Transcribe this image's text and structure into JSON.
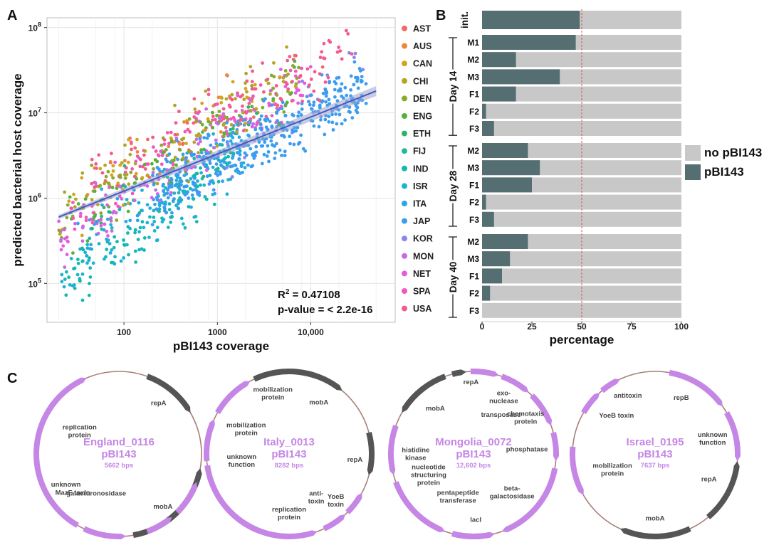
{
  "panel_labels": {
    "a": "A",
    "b": "B",
    "c": "C"
  },
  "colors": {
    "plasmid": "#546e72",
    "no_plasmid": "#c8c8c8",
    "ref_line": "#e05050",
    "regression": "#4557c9",
    "circle": "#a88078",
    "gene_purple": "#c586e6",
    "gene_gray": "#555555"
  },
  "chart_data": [
    {
      "type": "scatter",
      "panel": "A",
      "xlabel": "pBI143 coverage",
      "ylabel": "predicted bacterial host coverage",
      "xscale": "log10",
      "yscale": "log10",
      "xlim": [
        15,
        80000
      ],
      "ylim": [
        35000,
        130000000
      ],
      "xticks": [
        {
          "v": 100,
          "label": "100"
        },
        {
          "v": 1000,
          "label": "1000"
        },
        {
          "v": 10000,
          "label": "10,000"
        }
      ],
      "yticks": [
        {
          "v": 100000,
          "base": "10",
          "exp": "5"
        },
        {
          "v": 1000000,
          "base": "10",
          "exp": "6"
        },
        {
          "v": 10000000,
          "base": "10",
          "exp": "7"
        },
        {
          "v": 100000000,
          "base": "10",
          "exp": "8"
        }
      ],
      "regression": {
        "x": [
          20,
          50000
        ],
        "y": [
          600000,
          18000000
        ]
      },
      "stats": {
        "r2_prefix": "R",
        "r2_exp": "2",
        "r2_value": " = 0.47108",
        "pvalue": "p-value = < 2.2e-16"
      },
      "series": [
        {
          "name": "AST",
          "color": "#f06a6a",
          "n": 18,
          "logx": [
            1.5,
            4.2
          ],
          "logy": [
            6.0,
            7.6
          ]
        },
        {
          "name": "AUS",
          "color": "#e8883a",
          "n": 20,
          "logx": [
            1.4,
            3.8
          ],
          "logy": [
            5.9,
            7.5
          ]
        },
        {
          "name": "CAN",
          "color": "#d4a41c",
          "n": 40,
          "logx": [
            1.3,
            3.9
          ],
          "logy": [
            5.8,
            7.6
          ]
        },
        {
          "name": "CHI",
          "color": "#b2a623",
          "n": 70,
          "logx": [
            1.3,
            3.8
          ],
          "logy": [
            5.8,
            7.5
          ]
        },
        {
          "name": "DEN",
          "color": "#8aab2a",
          "n": 70,
          "logx": [
            1.3,
            3.9
          ],
          "logy": [
            5.8,
            7.4
          ]
        },
        {
          "name": "ENG",
          "color": "#56b03a",
          "n": 60,
          "logx": [
            1.4,
            3.9
          ],
          "logy": [
            5.7,
            7.3
          ]
        },
        {
          "name": "ETH",
          "color": "#2bb56a",
          "n": 15,
          "logx": [
            1.5,
            3.5
          ],
          "logy": [
            5.6,
            7.0
          ]
        },
        {
          "name": "FIJ",
          "color": "#1dbb98",
          "n": 15,
          "logx": [
            1.4,
            3.4
          ],
          "logy": [
            5.5,
            6.8
          ]
        },
        {
          "name": "IND",
          "color": "#13b8b0",
          "n": 90,
          "logx": [
            1.3,
            3.2
          ],
          "logy": [
            5.0,
            6.5
          ]
        },
        {
          "name": "ISR",
          "color": "#1ab3d2",
          "n": 110,
          "logx": [
            1.3,
            3.3
          ],
          "logy": [
            5.0,
            6.6
          ]
        },
        {
          "name": "ITA",
          "color": "#29a7e8",
          "n": 70,
          "logx": [
            1.5,
            3.8
          ],
          "logy": [
            5.6,
            6.9
          ]
        },
        {
          "name": "JAP",
          "color": "#3b9cf0",
          "n": 380,
          "logx": [
            2.3,
            4.6
          ],
          "logy": [
            6.0,
            7.3
          ]
        },
        {
          "name": "KOR",
          "color": "#8b86ea",
          "n": 20,
          "logx": [
            3.0,
            4.6
          ],
          "logy": [
            6.5,
            7.6
          ]
        },
        {
          "name": "MON",
          "color": "#c46ae8",
          "n": 60,
          "logx": [
            1.3,
            3.8
          ],
          "logy": [
            5.5,
            7.3
          ]
        },
        {
          "name": "NET",
          "color": "#e55ce0",
          "n": 80,
          "logx": [
            1.3,
            4.0
          ],
          "logy": [
            5.5,
            7.4
          ]
        },
        {
          "name": "SPA",
          "color": "#f257bb",
          "n": 70,
          "logx": [
            1.3,
            4.0
          ],
          "logy": [
            5.6,
            7.5
          ]
        },
        {
          "name": "USA",
          "color": "#f35a8e",
          "n": 120,
          "logx": [
            1.6,
            4.5
          ],
          "logy": [
            6.2,
            7.8
          ]
        }
      ]
    },
    {
      "type": "bar",
      "panel": "B",
      "orientation": "horizontal",
      "stacked": true,
      "xlabel": "percentage",
      "xlim": [
        0,
        100
      ],
      "xticks": [
        0,
        25,
        50,
        75,
        100
      ],
      "reference_line": 50,
      "legend": [
        {
          "name": "no pBI143",
          "key": "no_plasmid"
        },
        {
          "name": "pBI143",
          "key": "plasmid"
        }
      ],
      "groups": [
        {
          "day": "init.",
          "rows": [
            {
              "label": "",
              "value": 49
            }
          ]
        },
        {
          "day": "Day 14",
          "rows": [
            {
              "label": "M1",
              "value": 47
            },
            {
              "label": "M2",
              "value": 17
            },
            {
              "label": "M3",
              "value": 39
            },
            {
              "label": "F1",
              "value": 17
            },
            {
              "label": "F2",
              "value": 2
            },
            {
              "label": "F3",
              "value": 6
            }
          ]
        },
        {
          "day": "Day 28",
          "rows": [
            {
              "label": "M2",
              "value": 23
            },
            {
              "label": "M3",
              "value": 29
            },
            {
              "label": "F1",
              "value": 25
            },
            {
              "label": "F2",
              "value": 2
            },
            {
              "label": "F3",
              "value": 6
            }
          ]
        },
        {
          "day": "Day 40",
          "rows": [
            {
              "label": "M2",
              "value": 23
            },
            {
              "label": "M3",
              "value": 14
            },
            {
              "label": "F1",
              "value": 10
            },
            {
              "label": "F2",
              "value": 4
            },
            {
              "label": "F3",
              "value": 0
            }
          ]
        }
      ]
    }
  ],
  "plasmids": [
    {
      "name": "England_0116",
      "plasmid": "pBI143",
      "size": "5662 bps",
      "genes": [
        {
          "label": [
            "replication",
            "protein"
          ],
          "a1": 210,
          "a2": 337,
          "color": "purple",
          "dir": "cw",
          "ldeg": 300,
          "lr": 0.55
        },
        {
          "label": [
            "repA"
          ],
          "a1": 20,
          "a2": 60,
          "color": "gray",
          "dir": "cw",
          "ldeg": 38,
          "lr": 0.78
        },
        {
          "label": [
            "mobA"
          ],
          "a1": 100,
          "a2": 170,
          "color": "gray",
          "dir": "ccw",
          "ldeg": 140,
          "lr": 0.83
        },
        {
          "label": [
            "galacturonosidase"
          ],
          "a1": 175,
          "a2": 205,
          "color": "purple",
          "dir": "ccw",
          "ldeg": 210,
          "lr": 0.55
        },
        {
          "label": [
            "MazF toxin"
          ],
          "a1": 140,
          "a2": 160,
          "color": "purple",
          "dir": "ccw",
          "ldeg": 230,
          "lr": 0.73
        },
        {
          "label": [
            "unknown"
          ],
          "a1": 110,
          "a2": 135,
          "color": "purple",
          "dir": "ccw",
          "ldeg": 240,
          "lr": 0.74
        }
      ]
    },
    {
      "name": "Italy_0013",
      "plasmid": "pBI143",
      "size": "8282 bps",
      "genes": [
        {
          "label": [
            "mobilization",
            "protein"
          ],
          "a1": 300,
          "a2": 332,
          "color": "purple",
          "dir": "cw",
          "ldeg": 345,
          "lr": 0.76
        },
        {
          "label": [
            "mobA"
          ],
          "a1": 335,
          "a2": 40,
          "color": "gray",
          "dir": "cw",
          "ldeg": 30,
          "lr": 0.72
        },
        {
          "label": [
            "mobilization",
            "protein"
          ],
          "a1": 265,
          "a2": 295,
          "color": "purple",
          "dir": "cw",
          "ldeg": 300,
          "lr": 0.6
        },
        {
          "label": [
            "repA"
          ],
          "a1": 75,
          "a2": 105,
          "color": "gray",
          "dir": "cw",
          "ldeg": 95,
          "lr": 0.8
        },
        {
          "label": [
            "unknown",
            "function"
          ],
          "a1": 200,
          "a2": 262,
          "color": "purple",
          "dir": "ccw",
          "ldeg": 262,
          "lr": 0.58
        },
        {
          "label": [
            "YoeB",
            "toxin"
          ],
          "a1": 118,
          "a2": 135,
          "color": "purple",
          "dir": "ccw",
          "ldeg": 135,
          "lr": 0.8
        },
        {
          "label": [
            "anti-",
            "toxin"
          ],
          "a1": 137,
          "a2": 155,
          "color": "purple",
          "dir": "ccw",
          "ldeg": 148,
          "lr": 0.62
        },
        {
          "label": [
            "replication",
            "protein"
          ],
          "a1": 160,
          "a2": 230,
          "color": "purple",
          "dir": "ccw",
          "ldeg": 180,
          "lr": 0.72
        }
      ]
    },
    {
      "name": "Mongolia_0072",
      "plasmid": "pBI143",
      "size": "12,602 bps",
      "genes": [
        {
          "label": [
            "repA"
          ],
          "a1": 345,
          "a2": 355,
          "color": "gray",
          "dir": "cw",
          "ldeg": 358,
          "lr": 0.87
        },
        {
          "label": [
            "exo-",
            "nuclease"
          ],
          "a1": 358,
          "a2": 18,
          "color": "purple",
          "dir": "cw",
          "ldeg": 28,
          "lr": 0.78
        },
        {
          "label": [
            "transposase"
          ],
          "a1": 20,
          "a2": 42,
          "color": "purple",
          "dir": "cw",
          "ldeg": 35,
          "lr": 0.58
        },
        {
          "label": [
            "mobA"
          ],
          "a1": 300,
          "a2": 340,
          "color": "gray",
          "dir": "ccw",
          "ldeg": 320,
          "lr": 0.72
        },
        {
          "label": [
            "chemotaxis",
            "protein"
          ],
          "a1": 45,
          "a2": 70,
          "color": "purple",
          "dir": "cw",
          "ldeg": 55,
          "lr": 0.77
        },
        {
          "label": [
            "phosphatase"
          ],
          "a1": 75,
          "a2": 95,
          "color": "purple",
          "dir": "cw",
          "ldeg": 85,
          "lr": 0.65
        },
        {
          "label": [
            "histidine",
            "kinase"
          ],
          "a1": 255,
          "a2": 290,
          "color": "purple",
          "dir": "ccw",
          "ldeg": 270,
          "lr": 0.7
        },
        {
          "label": [
            "nucleotide",
            "structuring",
            "protein"
          ],
          "a1": 200,
          "a2": 250,
          "color": "purple",
          "dir": "ccw",
          "ldeg": 245,
          "lr": 0.6
        },
        {
          "label": [
            "beta-",
            "galactosidase"
          ],
          "a1": 100,
          "a2": 160,
          "color": "purple",
          "dir": "cw",
          "ldeg": 135,
          "lr": 0.66
        },
        {
          "label": [
            "pentapeptide",
            "transferase"
          ],
          "a1": 165,
          "a2": 195,
          "color": "purple",
          "dir": "ccw",
          "ldeg": 200,
          "lr": 0.55
        },
        {
          "label": [
            "lacI"
          ],
          "a1": 170,
          "a2": 190,
          "color": "purple",
          "dir": "ccw",
          "ldeg": 178,
          "lr": 0.8
        }
      ]
    },
    {
      "name": "Israel_0195",
      "plasmid": "pBI143",
      "size": "7637 bps",
      "genes": [
        {
          "label": [
            "antitoxin"
          ],
          "a1": 320,
          "a2": 335,
          "color": "purple",
          "dir": "cw",
          "ldeg": 335,
          "lr": 0.78
        },
        {
          "label": [
            "YoeB toxin"
          ],
          "a1": 300,
          "a2": 318,
          "color": "purple",
          "dir": "cw",
          "ldeg": 315,
          "lr": 0.66
        },
        {
          "label": [
            "repB"
          ],
          "a1": 10,
          "a2": 55,
          "color": "purple",
          "dir": "cw",
          "ldeg": 25,
          "lr": 0.75
        },
        {
          "label": [
            "unknown",
            "function"
          ],
          "a1": 60,
          "a2": 95,
          "color": "purple",
          "dir": "cw",
          "ldeg": 75,
          "lr": 0.72
        },
        {
          "label": [
            "repA"
          ],
          "a1": 95,
          "a2": 140,
          "color": "gray",
          "dir": "ccw",
          "ldeg": 115,
          "lr": 0.72
        },
        {
          "label": [
            "mobA"
          ],
          "a1": 155,
          "a2": 205,
          "color": "gray",
          "dir": "cw",
          "ldeg": 180,
          "lr": 0.78
        },
        {
          "label": [
            "mobilization",
            "protein"
          ],
          "a1": 240,
          "a2": 275,
          "color": "purple",
          "dir": "ccw",
          "ldeg": 250,
          "lr": 0.55
        }
      ]
    }
  ]
}
